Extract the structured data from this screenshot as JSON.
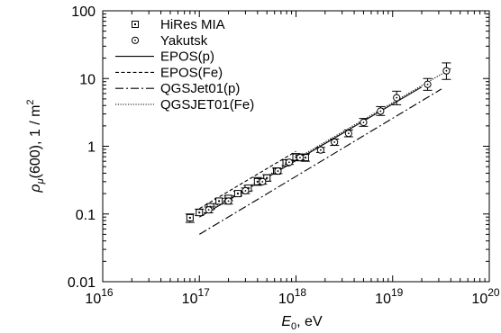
{
  "chart_data": {
    "type": "scatter",
    "xscale": "log",
    "yscale": "log",
    "xlim": [
      1e+16,
      1e+20
    ],
    "ylim": [
      0.01,
      100
    ],
    "x_ticks": [
      {
        "value": 1e+16,
        "base": "10",
        "exp": "16"
      },
      {
        "value": 1e+17,
        "base": "10",
        "exp": "17"
      },
      {
        "value": 1e+18,
        "base": "10",
        "exp": "18"
      },
      {
        "value": 1e+19,
        "base": "10",
        "exp": "19"
      },
      {
        "value": 1e+20,
        "base": "10",
        "exp": "20"
      }
    ],
    "y_ticks": [
      {
        "value": 0.01,
        "label": "0.01"
      },
      {
        "value": 0.1,
        "label": "0.1"
      },
      {
        "value": 1,
        "label": "1"
      },
      {
        "value": 10,
        "label": "10"
      },
      {
        "value": 100,
        "label": "100"
      }
    ],
    "xlabel": {
      "symbol": "E",
      "sub": "0",
      "unit": ",   eV"
    },
    "ylabel": {
      "symbol": "ρ",
      "sub": "μ",
      "arg": "(600),   1 / m",
      "sup": "2"
    },
    "legend_position": "top-left",
    "series": [
      {
        "name": "HiRes MIA",
        "kind": "points",
        "marker": "square",
        "points": [
          {
            "x": 8e+16,
            "y": 0.088,
            "lo": 0.075,
            "hi": 0.1
          },
          {
            "x": 1e+17,
            "y": 0.105,
            "lo": 0.095,
            "hi": 0.118
          },
          {
            "x": 1.3e+17,
            "y": 0.128,
            "lo": 0.118,
            "hi": 0.14
          },
          {
            "x": 1.6e+17,
            "y": 0.155,
            "lo": 0.143,
            "hi": 0.17
          },
          {
            "x": 2e+17,
            "y": 0.17,
            "lo": 0.158,
            "hi": 0.185
          },
          {
            "x": 2.5e+17,
            "y": 0.2,
            "lo": 0.185,
            "hi": 0.218
          },
          {
            "x": 3.2e+17,
            "y": 0.24,
            "lo": 0.22,
            "hi": 0.262
          },
          {
            "x": 4e+17,
            "y": 0.3,
            "lo": 0.265,
            "hi": 0.345
          },
          {
            "x": 5e+17,
            "y": 0.34,
            "lo": 0.305,
            "hi": 0.38
          },
          {
            "x": 6.3e+17,
            "y": 0.43,
            "lo": 0.39,
            "hi": 0.475
          },
          {
            "x": 7.9e+17,
            "y": 0.57,
            "lo": 0.52,
            "hi": 0.625
          },
          {
            "x": 1e+18,
            "y": 0.69,
            "lo": 0.61,
            "hi": 0.78
          },
          {
            "x": 1.25e+18,
            "y": 0.68,
            "lo": 0.6,
            "hi": 0.77
          }
        ]
      },
      {
        "name": "Yakutsk",
        "kind": "points",
        "marker": "circle",
        "points": [
          {
            "x": 1.25e+17,
            "y": 0.115,
            "lo": 0.104,
            "hi": 0.127
          },
          {
            "x": 2e+17,
            "y": 0.155,
            "lo": 0.14,
            "hi": 0.172
          },
          {
            "x": 3e+17,
            "y": 0.22,
            "lo": 0.2,
            "hi": 0.242
          },
          {
            "x": 4.5e+17,
            "y": 0.3,
            "lo": 0.275,
            "hi": 0.327
          },
          {
            "x": 6.5e+17,
            "y": 0.43,
            "lo": 0.395,
            "hi": 0.47
          },
          {
            "x": 8.5e+17,
            "y": 0.58,
            "lo": 0.54,
            "hi": 0.625
          },
          {
            "x": 1.1e+18,
            "y": 0.68,
            "lo": 0.63,
            "hi": 0.735
          },
          {
            "x": 1.8e+18,
            "y": 0.88,
            "lo": 0.81,
            "hi": 0.96
          },
          {
            "x": 2.5e+18,
            "y": 1.15,
            "lo": 1.03,
            "hi": 1.28
          },
          {
            "x": 3.5e+18,
            "y": 1.55,
            "lo": 1.38,
            "hi": 1.74
          },
          {
            "x": 5e+18,
            "y": 2.25,
            "lo": 1.97,
            "hi": 2.57
          },
          {
            "x": 7.5e+18,
            "y": 3.3,
            "lo": 2.85,
            "hi": 3.85
          },
          {
            "x": 1.1e+19,
            "y": 5.2,
            "lo": 4.1,
            "hi": 6.5
          },
          {
            "x": 2.3e+19,
            "y": 8.2,
            "lo": 6.7,
            "hi": 10.0
          },
          {
            "x": 3.6e+19,
            "y": 13.0,
            "lo": 9.7,
            "hi": 17.0
          }
        ]
      },
      {
        "name": "EPOS(p)",
        "kind": "line",
        "dash": "",
        "points": [
          {
            "x": 1e+17,
            "y": 0.09
          },
          {
            "x": 2e+19,
            "y": 7.5
          }
        ]
      },
      {
        "name": "EPOS(Fe)",
        "kind": "line",
        "dash": "4,2.5",
        "points": [
          {
            "x": 1e+17,
            "y": 0.12
          },
          {
            "x": 1e+18,
            "y": 0.84
          }
        ]
      },
      {
        "name": "QGSJet01(p)",
        "kind": "line",
        "dash": "9,3,2,3",
        "points": [
          {
            "x": 1e+17,
            "y": 0.05
          },
          {
            "x": 3.2e+19,
            "y": 7.0
          }
        ]
      },
      {
        "name": "QGSJET01(Fe)",
        "kind": "line",
        "dash": "1.2,1.6",
        "points": [
          {
            "x": 1e+17,
            "y": 0.095
          },
          {
            "x": 4e+19,
            "y": 14.0
          }
        ]
      }
    ]
  }
}
